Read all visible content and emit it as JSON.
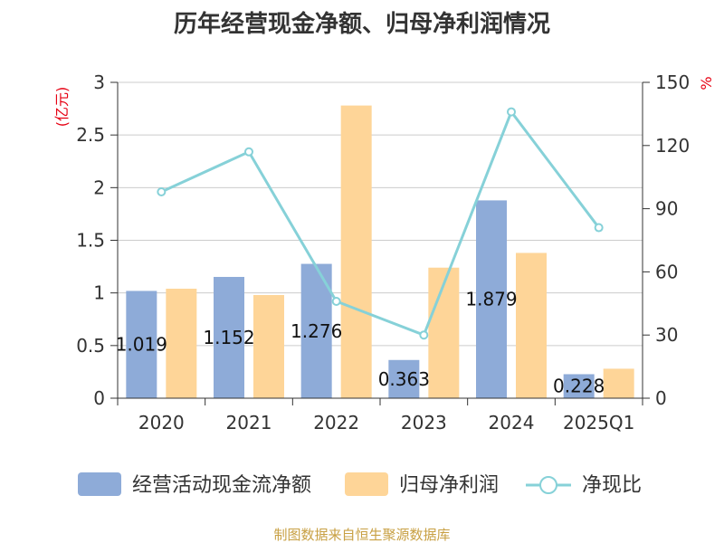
{
  "title": "历年经营现金净额、归母净利润情况",
  "footer": "制图数据来自恒生聚源数据库",
  "chart_data": {
    "type": "bar",
    "categories": [
      "2020",
      "2021",
      "2022",
      "2023",
      "2024",
      "2025Q1"
    ],
    "series": [
      {
        "name": "经营活动现金流净额",
        "type": "bar",
        "axis": "left",
        "color": "#8eabd8",
        "values": [
          1.019,
          1.152,
          1.276,
          0.363,
          1.879,
          0.228
        ],
        "labels": [
          "1.019",
          "1.152",
          "1.276",
          "0.363",
          "1.879",
          "0.228"
        ]
      },
      {
        "name": "归母净利润",
        "type": "bar",
        "axis": "left",
        "color": "#fed598",
        "values": [
          1.04,
          0.98,
          2.78,
          1.24,
          1.38,
          0.28
        ]
      },
      {
        "name": "净现比",
        "type": "line",
        "axis": "right",
        "color": "#86d1d8",
        "values": [
          98,
          117,
          46,
          30,
          136,
          81
        ]
      }
    ],
    "left_axis": {
      "unit": "(亿元)",
      "ylim": [
        0,
        3
      ],
      "ticks": [
        "0",
        "0.5",
        "1",
        "1.5",
        "2",
        "2.5",
        "3"
      ]
    },
    "right_axis": {
      "unit": "%",
      "ylim": [
        0,
        150
      ],
      "ticks": [
        "0",
        "30",
        "60",
        "90",
        "120",
        "150"
      ]
    },
    "grid": true,
    "legend_position": "bottom"
  }
}
